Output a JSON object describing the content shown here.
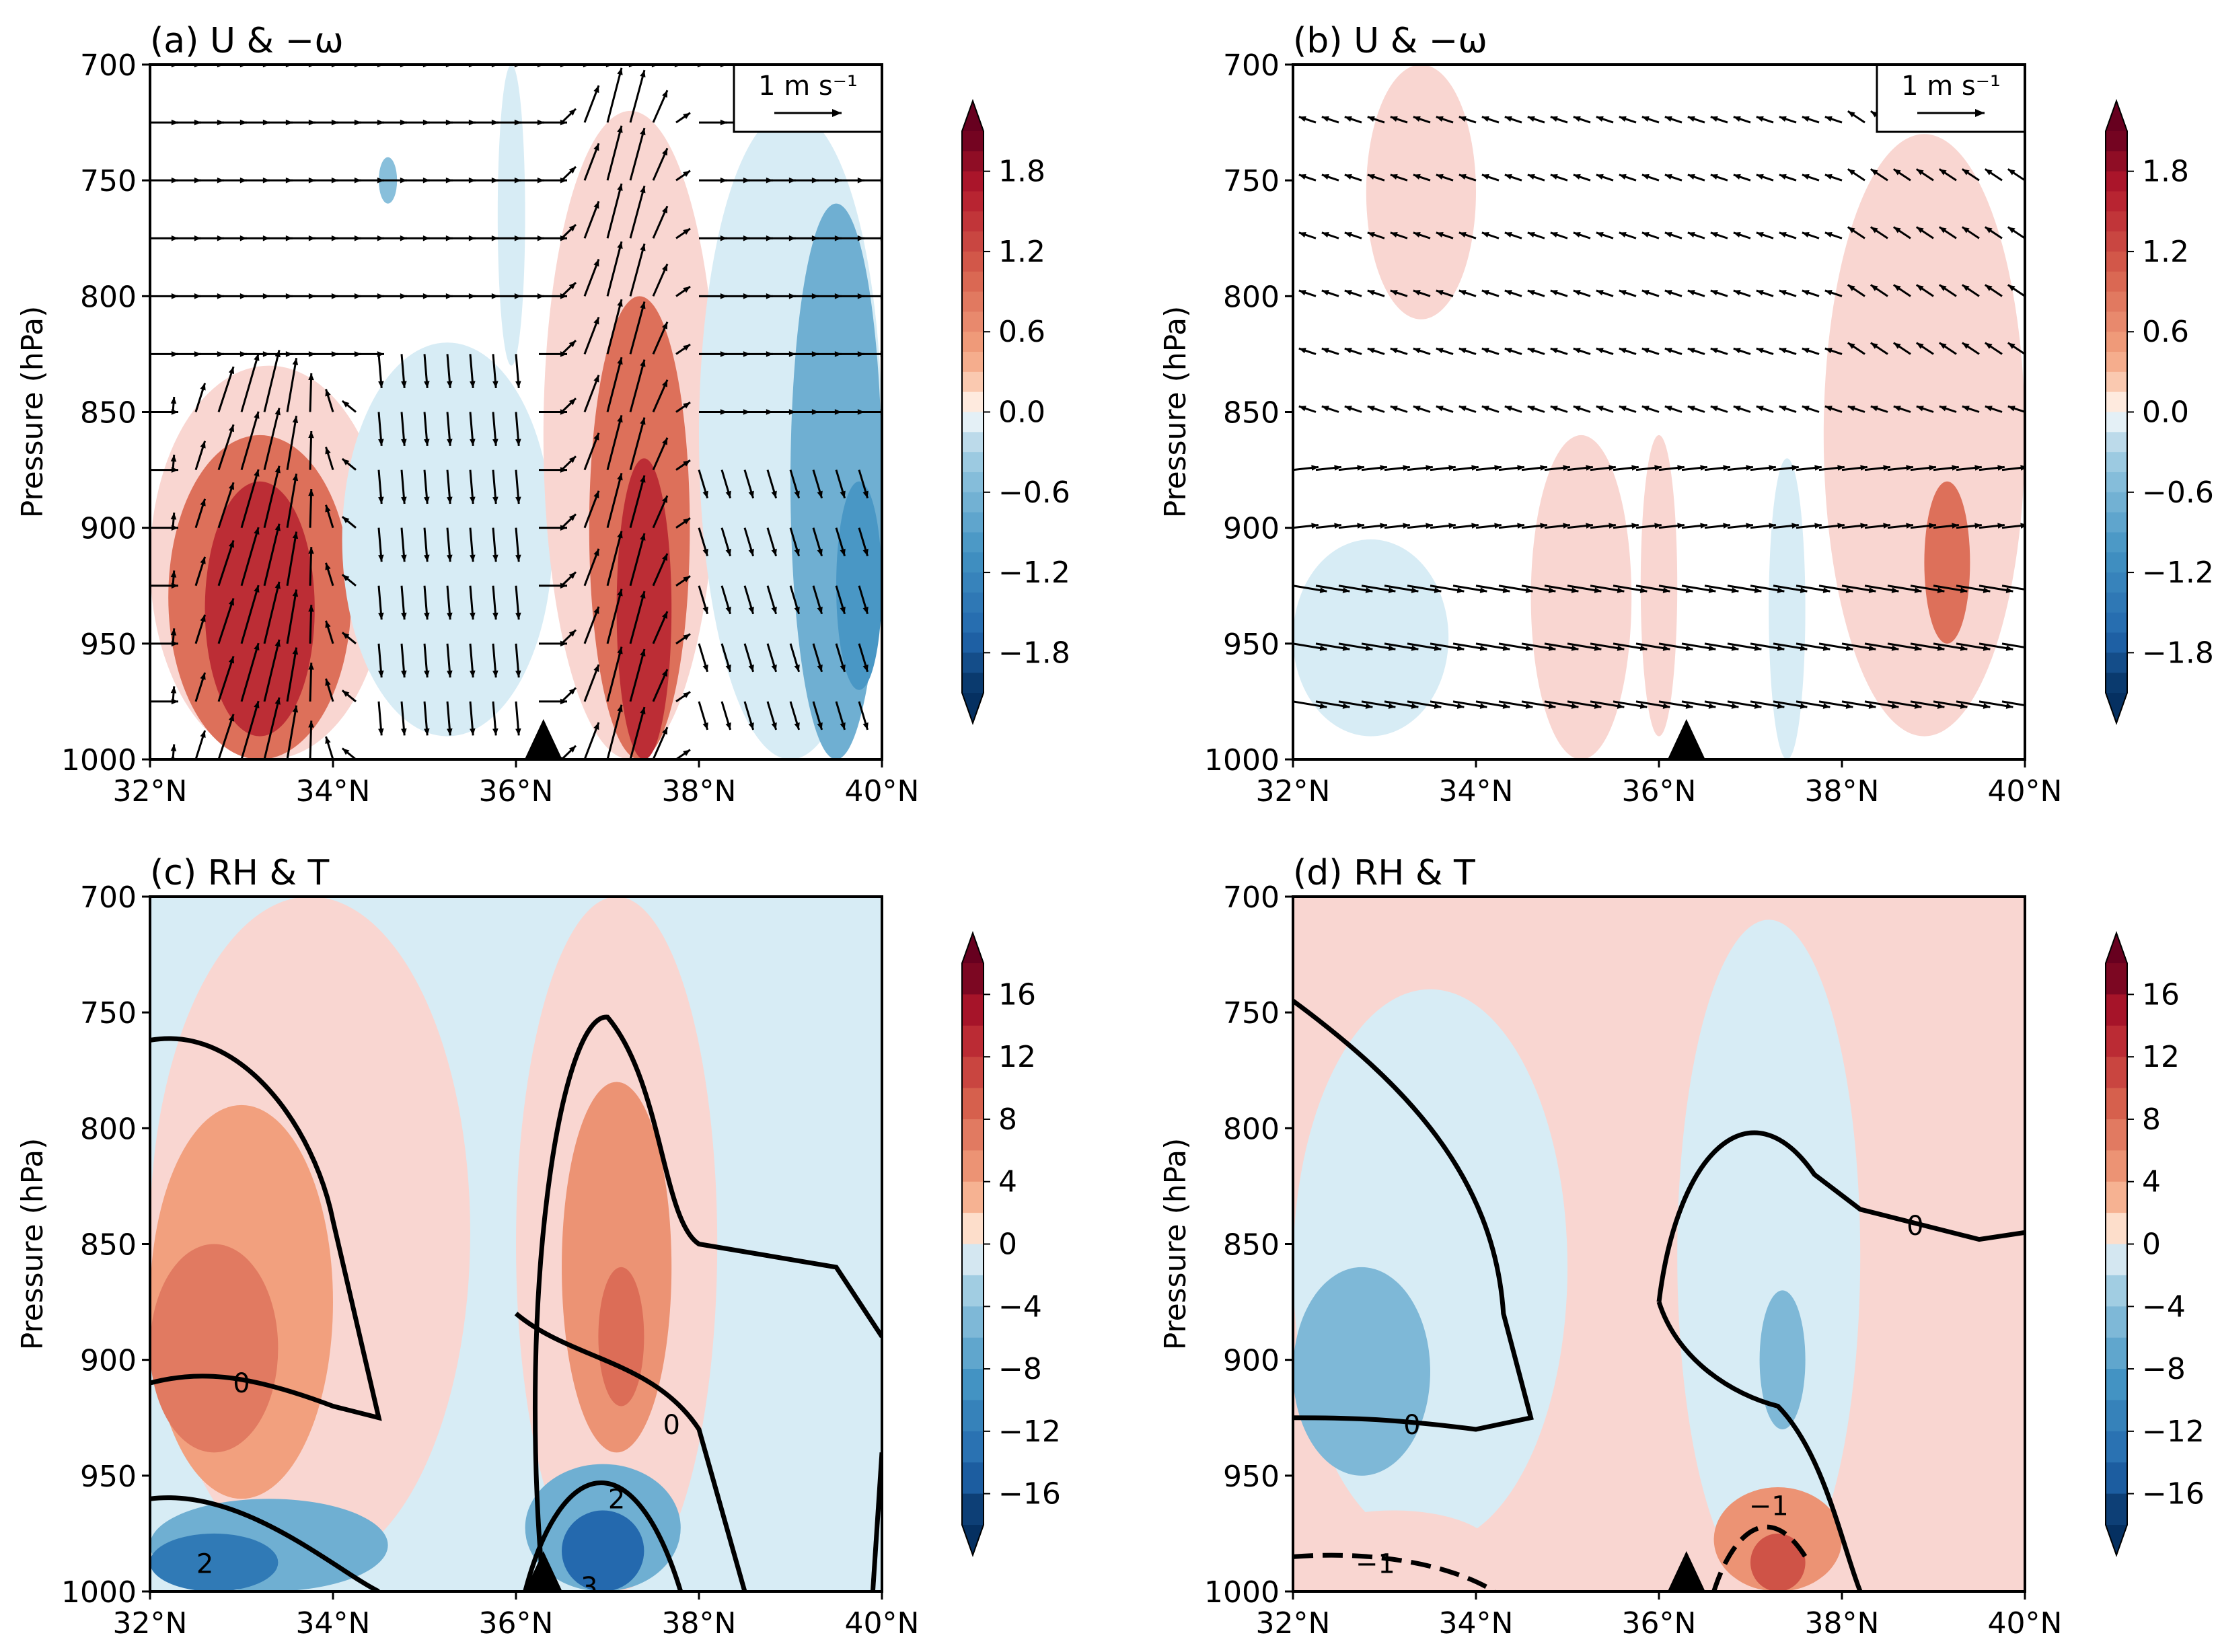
{
  "chart_data": [
    {
      "type": "heatmap",
      "title": "(a) U & −ω",
      "ylabel": "Pressure (hPa)",
      "xlabel": "",
      "x_ticks": [
        "32°N",
        "34°N",
        "36°N",
        "38°N",
        "40°N"
      ],
      "y_ticks": [
        "700",
        "750",
        "800",
        "850",
        "900",
        "950",
        "1000"
      ],
      "xlim": [
        32,
        40
      ],
      "ylim": [
        1000,
        700
      ],
      "colorbar": {
        "ticks": [
          "1.8",
          "1.2",
          "0.6",
          "0.0",
          "−0.6",
          "−1.2",
          "−1.8"
        ],
        "range": [
          -2.1,
          2.1
        ]
      },
      "reference_vector": "1 m s⁻¹",
      "terrain_marker_lat": 36.3,
      "shaded_regions": [
        {
          "value": 0.3,
          "lat": [
            32.0,
            34.6
          ],
          "p": [
            830,
            1000
          ]
        },
        {
          "value": 0.9,
          "lat": [
            32.2,
            34.2
          ],
          "p": [
            860,
            1000
          ]
        },
        {
          "value": 1.5,
          "lat": [
            32.6,
            33.8
          ],
          "p": [
            880,
            990
          ]
        },
        {
          "value": -0.3,
          "lat": [
            34.1,
            36.4
          ],
          "p": [
            820,
            990
          ]
        },
        {
          "value": -0.3,
          "lat": [
            35.8,
            36.1
          ],
          "p": [
            700,
            830
          ]
        },
        {
          "value": -0.5,
          "lat": [
            34.5,
            34.7
          ],
          "p": [
            740,
            760
          ]
        },
        {
          "value": 0.3,
          "lat": [
            36.3,
            38.2
          ],
          "p": [
            720,
            1000
          ]
        },
        {
          "value": 0.9,
          "lat": [
            36.8,
            37.9
          ],
          "p": [
            800,
            1000
          ]
        },
        {
          "value": 1.5,
          "lat": [
            37.1,
            37.7
          ],
          "p": [
            870,
            1000
          ]
        },
        {
          "value": -0.3,
          "lat": [
            38.0,
            40.0
          ],
          "p": [
            720,
            1000
          ]
        },
        {
          "value": -0.7,
          "lat": [
            39.0,
            40.0
          ],
          "p": [
            760,
            1000
          ]
        },
        {
          "value": -1.0,
          "lat": [
            39.5,
            40.0
          ],
          "p": [
            880,
            970
          ]
        }
      ]
    },
    {
      "type": "heatmap",
      "title": "(b) U & −ω",
      "ylabel": "Pressure (hPa)",
      "xlabel": "",
      "x_ticks": [
        "32°N",
        "34°N",
        "36°N",
        "38°N",
        "40°N"
      ],
      "y_ticks": [
        "700",
        "750",
        "800",
        "850",
        "900",
        "950",
        "1000"
      ],
      "xlim": [
        32,
        40
      ],
      "ylim": [
        1000,
        700
      ],
      "colorbar": {
        "ticks": [
          "1.8",
          "1.2",
          "0.6",
          "0.0",
          "−0.6",
          "−1.2",
          "−1.8"
        ],
        "range": [
          -2.1,
          2.1
        ]
      },
      "reference_vector": "1 m s⁻¹",
      "terrain_marker_lat": 36.3,
      "shaded_regions": [
        {
          "value": 0.3,
          "lat": [
            32.8,
            34.0
          ],
          "p": [
            700,
            810
          ]
        },
        {
          "value": -0.3,
          "lat": [
            32.0,
            33.7
          ],
          "p": [
            905,
            990
          ]
        },
        {
          "value": 0.3,
          "lat": [
            34.6,
            35.7
          ],
          "p": [
            860,
            1000
          ]
        },
        {
          "value": 0.3,
          "lat": [
            35.8,
            36.2
          ],
          "p": [
            860,
            990
          ]
        },
        {
          "value": -0.3,
          "lat": [
            37.2,
            37.6
          ],
          "p": [
            870,
            1000
          ]
        },
        {
          "value": 0.3,
          "lat": [
            37.8,
            40.0
          ],
          "p": [
            730,
            990
          ]
        },
        {
          "value": 0.9,
          "lat": [
            38.9,
            39.4
          ],
          "p": [
            880,
            950
          ]
        }
      ]
    },
    {
      "type": "heatmap",
      "title": "(c) RH & T",
      "ylabel": "Pressure (hPa)",
      "xlabel": "",
      "x_ticks": [
        "32°N",
        "34°N",
        "36°N",
        "38°N",
        "40°N"
      ],
      "y_ticks": [
        "700",
        "750",
        "800",
        "850",
        "900",
        "950",
        "1000"
      ],
      "xlim": [
        32,
        40
      ],
      "ylim": [
        1000,
        700
      ],
      "colorbar": {
        "ticks": [
          "16",
          "12",
          "8",
          "4",
          "0",
          "−4",
          "−8",
          "−12",
          "−16"
        ],
        "range": [
          -18,
          18
        ]
      },
      "contour_labels": [
        "0",
        "0",
        "2",
        "2",
        "3"
      ],
      "terrain_marker_lat": 36.3,
      "shaded_regions": [
        {
          "value": -2,
          "lat": [
            32.0,
            40.0
          ],
          "p": [
            700,
            1000
          ]
        },
        {
          "value": 2,
          "lat": [
            32.0,
            35.5
          ],
          "p": [
            700,
            990
          ]
        },
        {
          "value": 4,
          "lat": [
            32.0,
            34.0
          ],
          "p": [
            790,
            960
          ]
        },
        {
          "value": 7,
          "lat": [
            32.0,
            33.4
          ],
          "p": [
            850,
            940
          ]
        },
        {
          "value": 2,
          "lat": [
            36.0,
            38.2
          ],
          "p": [
            700,
            1000
          ]
        },
        {
          "value": 5,
          "lat": [
            36.5,
            37.7
          ],
          "p": [
            780,
            940
          ]
        },
        {
          "value": 8,
          "lat": [
            36.9,
            37.4
          ],
          "p": [
            860,
            920
          ]
        },
        {
          "value": -6,
          "lat": [
            32.0,
            34.6
          ],
          "p": [
            960,
            1000
          ]
        },
        {
          "value": -12,
          "lat": [
            32.0,
            33.4
          ],
          "p": [
            975,
            1000
          ]
        },
        {
          "value": -6,
          "lat": [
            36.1,
            37.8
          ],
          "p": [
            945,
            1000
          ]
        },
        {
          "value": -14,
          "lat": [
            36.5,
            37.4
          ],
          "p": [
            965,
            1000
          ]
        }
      ]
    },
    {
      "type": "heatmap",
      "title": "(d) RH & T",
      "ylabel": "Pressure (hPa)",
      "xlabel": "",
      "x_ticks": [
        "32°N",
        "34°N",
        "36°N",
        "38°N",
        "40°N"
      ],
      "y_ticks": [
        "700",
        "750",
        "800",
        "850",
        "900",
        "950",
        "1000"
      ],
      "xlim": [
        32,
        40
      ],
      "ylim": [
        1000,
        700
      ],
      "colorbar": {
        "ticks": [
          "16",
          "12",
          "8",
          "4",
          "0",
          "−4",
          "−8",
          "−12",
          "−16"
        ],
        "range": [
          -18,
          18
        ]
      },
      "contour_labels": [
        "0",
        "0",
        "−1",
        "−1"
      ],
      "terrain_marker_lat": 36.3,
      "shaded_regions": [
        {
          "value": 2,
          "lat": [
            32.0,
            40.0
          ],
          "p": [
            700,
            1000
          ]
        },
        {
          "value": -2,
          "lat": [
            32.0,
            35.0
          ],
          "p": [
            740,
            980
          ]
        },
        {
          "value": -5,
          "lat": [
            32.0,
            33.5
          ],
          "p": [
            860,
            950
          ]
        },
        {
          "value": -2,
          "lat": [
            36.2,
            38.2
          ],
          "p": [
            710,
            1000
          ]
        },
        {
          "value": -5,
          "lat": [
            37.1,
            37.6
          ],
          "p": [
            870,
            930
          ]
        },
        {
          "value": 3,
          "lat": [
            32.0,
            34.2
          ],
          "p": [
            965,
            1000
          ]
        },
        {
          "value": 5,
          "lat": [
            36.6,
            38.0
          ],
          "p": [
            955,
            1000
          ]
        },
        {
          "value": 10,
          "lat": [
            37.0,
            37.6
          ],
          "p": [
            975,
            1000
          ]
        }
      ]
    }
  ]
}
